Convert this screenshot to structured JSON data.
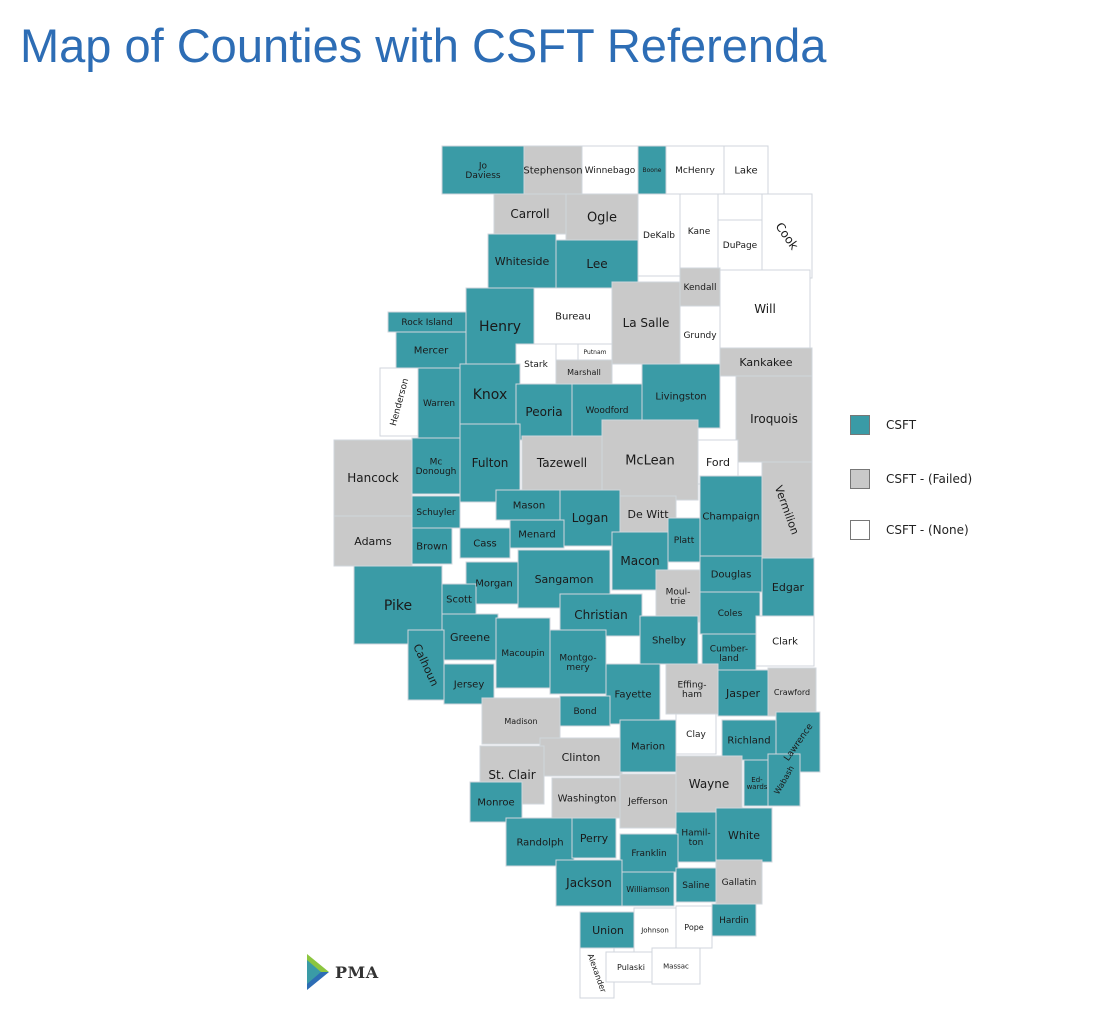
{
  "title": "Map of Counties with CSFT Referenda",
  "colors": {
    "csft": "#3a9ba6",
    "failed": "#c9c9c9",
    "none": "#ffffff",
    "border": "#d0d6dc",
    "title": "#2d6db5"
  },
  "legend": [
    {
      "label": "CSFT",
      "status": "csft"
    },
    {
      "label": "CSFT - (Failed)",
      "status": "failed"
    },
    {
      "label": "CSFT - (None)",
      "status": "none"
    }
  ],
  "logo": {
    "text": "PMA"
  },
  "counties": [
    {
      "label": "Jo Daviess",
      "status": "csft"
    },
    {
      "label": "Stephenson",
      "status": "failed"
    },
    {
      "label": "Winnebago",
      "status": "none"
    },
    {
      "label": "Boone",
      "status": "csft"
    },
    {
      "label": "McHenry",
      "status": "none"
    },
    {
      "label": "Lake",
      "status": "none"
    },
    {
      "label": "Carroll",
      "status": "failed"
    },
    {
      "label": "Ogle",
      "status": "failed"
    },
    {
      "label": "DeKalb",
      "status": "none"
    },
    {
      "label": "Kane",
      "status": "none"
    },
    {
      "label": "DuPage",
      "status": "none"
    },
    {
      "label": "Cook",
      "status": "none"
    },
    {
      "label": "Whiteside",
      "status": "csft"
    },
    {
      "label": "Lee",
      "status": "csft"
    },
    {
      "label": "Kendall",
      "status": "failed"
    },
    {
      "label": "Will",
      "status": "none"
    },
    {
      "label": "Rock Island",
      "status": "csft"
    },
    {
      "label": "Henry",
      "status": "csft"
    },
    {
      "label": "Bureau",
      "status": "none"
    },
    {
      "label": "La Salle",
      "status": "failed"
    },
    {
      "label": "Grundy",
      "status": "none"
    },
    {
      "label": "Mercer",
      "status": "csft"
    },
    {
      "label": "Putnam",
      "status": "none"
    },
    {
      "label": "Kankakee",
      "status": "failed"
    },
    {
      "label": "Stark",
      "status": "none"
    },
    {
      "label": "Marshall",
      "status": "failed"
    },
    {
      "label": "Henderson",
      "status": "none"
    },
    {
      "label": "Knox",
      "status": "csft"
    },
    {
      "label": "Warren",
      "status": "csft"
    },
    {
      "label": "Peoria",
      "status": "csft"
    },
    {
      "label": "Woodford",
      "status": "csft"
    },
    {
      "label": "Livingston",
      "status": "csft"
    },
    {
      "label": "Iroquois",
      "status": "failed"
    },
    {
      "label": "Hancock",
      "status": "failed"
    },
    {
      "label": "Mc Donough",
      "status": "csft"
    },
    {
      "label": "Fulton",
      "status": "csft"
    },
    {
      "label": "Tazewell",
      "status": "failed"
    },
    {
      "label": "McLean",
      "status": "failed"
    },
    {
      "label": "Ford",
      "status": "none"
    },
    {
      "label": "Vermilion",
      "status": "failed"
    },
    {
      "label": "Adams",
      "status": "failed"
    },
    {
      "label": "Schuyler",
      "status": "csft"
    },
    {
      "label": "Mason",
      "status": "csft"
    },
    {
      "label": "Logan",
      "status": "csft"
    },
    {
      "label": "De Witt",
      "status": "failed"
    },
    {
      "label": "Champaign",
      "status": "csft"
    },
    {
      "label": "Brown",
      "status": "csft"
    },
    {
      "label": "Cass",
      "status": "csft"
    },
    {
      "label": "Menard",
      "status": "csft"
    },
    {
      "label": "Platt",
      "status": "csft"
    },
    {
      "label": "Pike",
      "status": "csft"
    },
    {
      "label": "Morgan",
      "status": "csft"
    },
    {
      "label": "Sangamon",
      "status": "csft"
    },
    {
      "label": "Macon",
      "status": "csft"
    },
    {
      "label": "Douglas",
      "status": "csft"
    },
    {
      "label": "Edgar",
      "status": "csft"
    },
    {
      "label": "Scott",
      "status": "csft"
    },
    {
      "label": "Christian",
      "status": "csft"
    },
    {
      "label": "Moultrie",
      "status": "failed"
    },
    {
      "label": "Coles",
      "status": "csft"
    },
    {
      "label": "Greene",
      "status": "csft"
    },
    {
      "label": "Shelby",
      "status": "csft"
    },
    {
      "label": "Clark",
      "status": "none"
    },
    {
      "label": "Cumberland",
      "status": "csft"
    },
    {
      "label": "Calhoun",
      "status": "csft"
    },
    {
      "label": "Macoupin",
      "status": "csft"
    },
    {
      "label": "Montgomery",
      "status": "csft"
    },
    {
      "label": "Jersey",
      "status": "csft"
    },
    {
      "label": "Fayette",
      "status": "csft"
    },
    {
      "label": "Effingham",
      "status": "failed"
    },
    {
      "label": "Jasper",
      "status": "csft"
    },
    {
      "label": "Crawford",
      "status": "failed"
    },
    {
      "label": "Madison",
      "status": "failed"
    },
    {
      "label": "Bond",
      "status": "csft"
    },
    {
      "label": "Clay",
      "status": "none"
    },
    {
      "label": "Richland",
      "status": "csft"
    },
    {
      "label": "Lawrence",
      "status": "csft"
    },
    {
      "label": "Clinton",
      "status": "failed"
    },
    {
      "label": "Marion",
      "status": "csft"
    },
    {
      "label": "St. Clair",
      "status": "failed"
    },
    {
      "label": "Wayne",
      "status": "failed"
    },
    {
      "label": "Edwards",
      "status": "csft"
    },
    {
      "label": "Wabash",
      "status": "csft"
    },
    {
      "label": "Monroe",
      "status": "csft"
    },
    {
      "label": "Washington",
      "status": "failed"
    },
    {
      "label": "Jefferson",
      "status": "failed"
    },
    {
      "label": "Hamilton",
      "status": "csft"
    },
    {
      "label": "White",
      "status": "csft"
    },
    {
      "label": "Randolph",
      "status": "csft"
    },
    {
      "label": "Perry",
      "status": "csft"
    },
    {
      "label": "Franklin",
      "status": "csft"
    },
    {
      "label": "Jackson",
      "status": "csft"
    },
    {
      "label": "Williamson",
      "status": "csft"
    },
    {
      "label": "Saline",
      "status": "csft"
    },
    {
      "label": "Gallatin",
      "status": "failed"
    },
    {
      "label": "Union",
      "status": "csft"
    },
    {
      "label": "Johnson",
      "status": "none"
    },
    {
      "label": "Pope",
      "status": "none"
    },
    {
      "label": "Hardin",
      "status": "csft"
    },
    {
      "label": "Alexander",
      "status": "none"
    },
    {
      "label": "Pulaski",
      "status": "none"
    },
    {
      "label": "Massac",
      "status": "none"
    }
  ]
}
